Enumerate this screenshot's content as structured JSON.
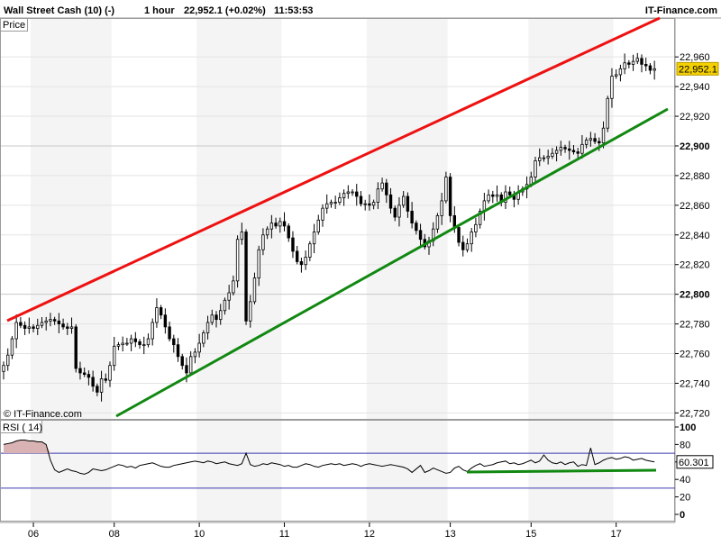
{
  "header": {
    "title": "Wall Street Cash (10) (-)",
    "timeframe": "1 hour",
    "last_price": "22,952.1 (+0.02%)",
    "time": "11:53:53",
    "brand": "IT-Finance.com"
  },
  "price_panel": {
    "label": "Price",
    "watermark": "© IT-Finance.com",
    "current_price_badge": "22,952.1"
  },
  "rsi_panel": {
    "label": "RSI ( 14)",
    "current_value_badge": "60.301"
  },
  "colors": {
    "background": "#ffffff",
    "band_shade": "#f4f4f4",
    "grid": "#e3e3e3",
    "candle": "#000000",
    "resistance_line": "#ee1111",
    "support_line": "#118811",
    "price_badge": "#f5d000",
    "rsi_fill": "#d9b3b3",
    "rsi_level": "#3b3bb5"
  },
  "chart_data": [
    {
      "type": "candlestick",
      "title": "Wall Street Cash (10) (-)",
      "interval": "1 hour",
      "y_ticks": [
        22720,
        22740,
        22760,
        22780,
        22800,
        22820,
        22840,
        22860,
        22880,
        22900,
        22920,
        22940,
        22960
      ],
      "y_tick_labels": [
        "22,720",
        "22,740",
        "22,760",
        "22,780",
        "22,800",
        "22,820",
        "22,840",
        "22,860",
        "22,880",
        "22,900",
        "22,920",
        "22,940",
        "22,960"
      ],
      "ylim": [
        22716,
        22985
      ],
      "x_tick_labels": [
        "06",
        "08",
        "10",
        "11",
        "12",
        "13",
        "15",
        "17"
      ],
      "x_tick_index": [
        7,
        26,
        46,
        66,
        86,
        105,
        124,
        144
      ],
      "n_bars": 154,
      "close": [
        22752,
        22759,
        22770,
        22781,
        22779,
        22777,
        22778,
        22777,
        22779,
        22781,
        22782,
        22783,
        22782,
        22780,
        22778,
        22777,
        22778,
        22750,
        22747,
        22746,
        22744,
        22738,
        22734,
        22743,
        22742,
        22752,
        22765,
        22766,
        22767,
        22767,
        22770,
        22768,
        22766,
        22766,
        22770,
        22781,
        22791,
        22786,
        22778,
        22770,
        22766,
        22758,
        22752,
        22747,
        22758,
        22761,
        22767,
        22774,
        22781,
        22786,
        22783,
        22789,
        22796,
        22801,
        22809,
        22837,
        22842,
        22782,
        22795,
        22811,
        22830,
        22840,
        22844,
        22848,
        22846,
        22849,
        22846,
        22838,
        22829,
        22822,
        22820,
        22825,
        22834,
        22842,
        22850,
        22858,
        22861,
        22862,
        22862,
        22865,
        22868,
        22869,
        22869,
        22866,
        22861,
        22861,
        22860,
        22862,
        22871,
        22875,
        22867,
        22858,
        22852,
        22860,
        22866,
        22856,
        22848,
        22843,
        22837,
        22832,
        22836,
        22844,
        22853,
        22863,
        22879,
        22853,
        22845,
        22835,
        22830,
        22834,
        22842,
        22847,
        22856,
        22863,
        22867,
        22866,
        22867,
        22862,
        22869,
        22867,
        22864,
        22869,
        22871,
        22874,
        22879,
        22890,
        22892,
        22892,
        22893,
        22895,
        22897,
        22899,
        22898,
        22897,
        22896,
        22895,
        22901,
        22904,
        22905,
        22903,
        22902,
        22912,
        22932,
        22947,
        22948,
        22952,
        22956,
        22955,
        22957,
        22959,
        22955,
        22954,
        22951,
        22952
      ]
    },
    {
      "type": "line",
      "title": "RSI ( 14)",
      "y_ticks": [
        0,
        20,
        40,
        60,
        80,
        100
      ],
      "levels": [
        70,
        30
      ],
      "ylim": [
        0,
        100
      ],
      "values": [
        80,
        81,
        82,
        84,
        85,
        85,
        84,
        84,
        83,
        83,
        80,
        62,
        51,
        48,
        50,
        52,
        50,
        49,
        47,
        46,
        48,
        52,
        51,
        50,
        51,
        53,
        55,
        57,
        56,
        54,
        55,
        53,
        56,
        57,
        58,
        59,
        57,
        55,
        54,
        54,
        56,
        57,
        58,
        59,
        60,
        61,
        60,
        59,
        61,
        60,
        58,
        59,
        60,
        58,
        57,
        56,
        58,
        70,
        57,
        55,
        56,
        58,
        57,
        59,
        58,
        57,
        55,
        56,
        54,
        54,
        56,
        58,
        57,
        55,
        54,
        56,
        57,
        58,
        57,
        58,
        56,
        57,
        58,
        57,
        55,
        57,
        58,
        57,
        56,
        55,
        56,
        57,
        56,
        55,
        54,
        52,
        48,
        52,
        56,
        48,
        50,
        53,
        51,
        49,
        47,
        48,
        53,
        55,
        51,
        49,
        53,
        56,
        58,
        55,
        56,
        57,
        59,
        60,
        61,
        58,
        59,
        57,
        58,
        60,
        62,
        59,
        61,
        68,
        62,
        59,
        58,
        60,
        57,
        59,
        60,
        55,
        57,
        56,
        76,
        57,
        59,
        62,
        64,
        65,
        63,
        64,
        66,
        65,
        62,
        63,
        64,
        62,
        61,
        60
      ]
    }
  ]
}
